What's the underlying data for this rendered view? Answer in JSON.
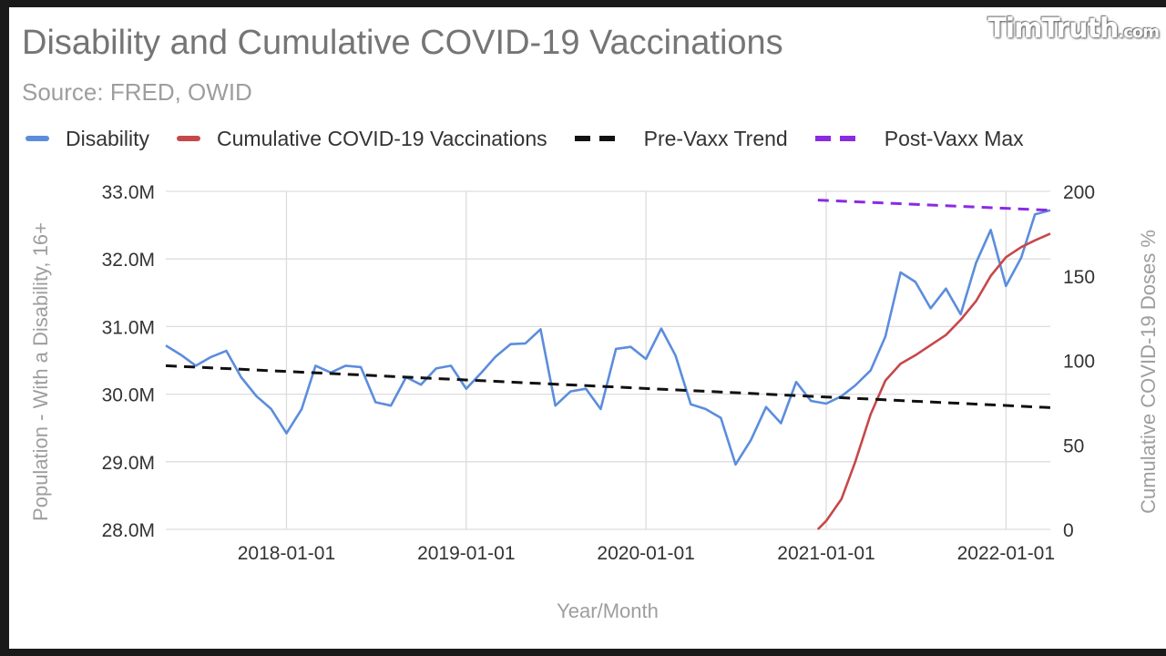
{
  "watermark": {
    "main": "TimTruth",
    "suffix": ".com"
  },
  "colors": {
    "disability": "#5b8ddd",
    "vaccinations": "#c6484a",
    "pre_trend": "#111111",
    "post_max": "#8a2be2",
    "grid": "#dddddd",
    "axis_text": "#333333",
    "axis_title": "#9e9e9e"
  },
  "chart_data": {
    "type": "line",
    "title": "Disability and Cumulative COVID-19 Vaccinations",
    "subtitle": "Source: FRED, OWID",
    "xlabel": "Year/Month",
    "ylabel_left": "Population - With a Disability, 16+",
    "ylabel_right": "Cumulative COVID-19 Doses %",
    "legend_position": "top",
    "grid": true,
    "x_range": [
      "2017-05-01",
      "2022-04-01"
    ],
    "x_ticks": [
      "2018-01-01",
      "2019-01-01",
      "2020-01-01",
      "2021-01-01",
      "2022-01-01"
    ],
    "y_left": {
      "min": 28.0,
      "max": 33.0,
      "ticks": [
        "28.0M",
        "29.0M",
        "30.0M",
        "31.0M",
        "32.0M",
        "33.0M"
      ]
    },
    "y_right": {
      "min": 0,
      "max": 200,
      "ticks": [
        "0",
        "50",
        "100",
        "150",
        "200"
      ]
    },
    "series": [
      {
        "name": "Disability",
        "axis": "left",
        "style": "solid",
        "x": [
          "2017-05",
          "2017-06",
          "2017-07",
          "2017-08",
          "2017-09",
          "2017-10",
          "2017-11",
          "2017-12",
          "2018-01",
          "2018-02",
          "2018-03",
          "2018-04",
          "2018-05",
          "2018-06",
          "2018-07",
          "2018-08",
          "2018-09",
          "2018-10",
          "2018-11",
          "2018-12",
          "2019-01",
          "2019-02",
          "2019-03",
          "2019-04",
          "2019-05",
          "2019-06",
          "2019-07",
          "2019-08",
          "2019-09",
          "2019-10",
          "2019-11",
          "2019-12",
          "2020-01",
          "2020-02",
          "2020-03",
          "2020-04",
          "2020-05",
          "2020-06",
          "2020-07",
          "2020-08",
          "2020-09",
          "2020-10",
          "2020-11",
          "2020-12",
          "2021-01",
          "2021-02",
          "2021-03",
          "2021-04",
          "2021-05",
          "2021-06",
          "2021-07",
          "2021-08",
          "2021-09",
          "2021-10",
          "2021-11",
          "2021-12",
          "2022-01",
          "2022-02",
          "2022-03",
          "2022-04"
        ],
        "values": [
          30.72,
          30.58,
          30.42,
          30.55,
          30.64,
          30.25,
          29.97,
          29.78,
          29.42,
          29.78,
          30.42,
          30.32,
          30.42,
          30.4,
          29.88,
          29.83,
          30.25,
          30.14,
          30.38,
          30.42,
          30.08,
          30.32,
          30.55,
          30.74,
          30.75,
          30.96,
          29.83,
          30.04,
          30.08,
          29.78,
          30.67,
          30.7,
          30.52,
          30.97,
          30.57,
          29.85,
          29.78,
          29.65,
          28.96,
          29.32,
          29.81,
          29.57,
          30.18,
          29.9,
          29.86,
          29.97,
          30.13,
          30.35,
          30.85,
          31.8,
          31.66,
          31.27,
          31.56,
          31.18,
          31.94,
          32.43,
          31.6,
          32.02,
          32.66,
          32.72
        ]
      },
      {
        "name": "Cumulative COVID-19 Vaccinations",
        "axis": "right",
        "style": "solid",
        "x": [
          "2020-12-15",
          "2021-01-01",
          "2021-02-01",
          "2021-03-01",
          "2021-04-01",
          "2021-05-01",
          "2021-06-01",
          "2021-07-01",
          "2021-08-01",
          "2021-09-01",
          "2021-10-01",
          "2021-11-01",
          "2021-12-01",
          "2022-01-01",
          "2022-02-01",
          "2022-03-01",
          "2022-04-01"
        ],
        "values": [
          0,
          5,
          18,
          40,
          68,
          88,
          98,
          103,
          109,
          115,
          124,
          135,
          150,
          161,
          167,
          171,
          175
        ]
      },
      {
        "name": "Pre-Vaxx Trend",
        "axis": "left",
        "style": "dashed",
        "x": [
          "2017-05-01",
          "2022-04-01"
        ],
        "values": [
          30.42,
          29.8
        ]
      },
      {
        "name": "Post-Vaxx Max",
        "axis": "left",
        "style": "dashed",
        "x": [
          "2020-12-15",
          "2022-04-01"
        ],
        "values": [
          32.87,
          32.72
        ]
      }
    ]
  }
}
